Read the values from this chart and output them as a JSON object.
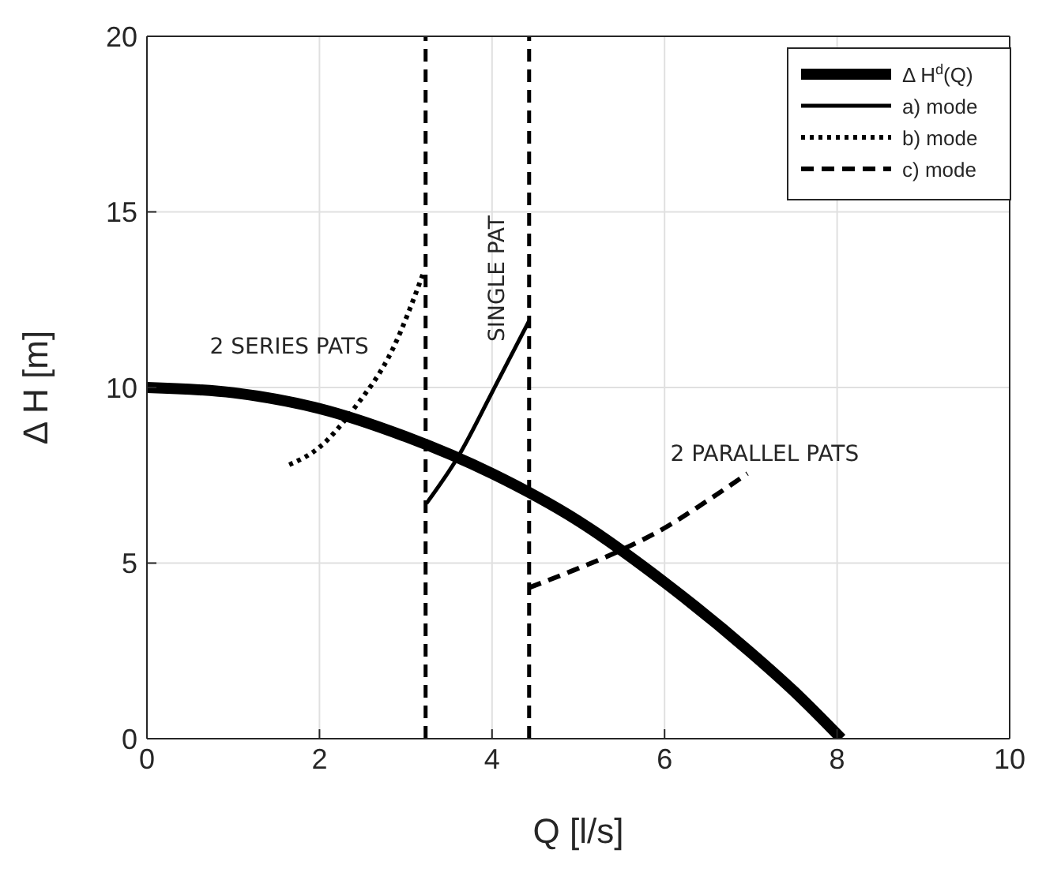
{
  "chart_data": {
    "type": "line",
    "xlabel": "Q [l/s]",
    "ylabel": "Δ H [m]",
    "xlim": [
      0,
      10
    ],
    "ylim": [
      0,
      20
    ],
    "xticks": [
      0,
      2,
      4,
      6,
      8,
      10
    ],
    "yticks": [
      0,
      5,
      10,
      15,
      20
    ],
    "grid": true,
    "legend": "top right",
    "marker": "none",
    "series": [
      {
        "name": "Δ H$^{d}$(Q)",
        "color": "#000000",
        "line_style": "solid",
        "x": [
          0,
          1,
          2,
          3,
          4,
          5,
          6,
          7,
          7.5,
          8.05
        ],
        "values": [
          10,
          9.85,
          9.4,
          8.6,
          7.55,
          6.2,
          4.45,
          2.45,
          1.35,
          0
        ]
      },
      {
        "name": "a) mode",
        "color": "#000000",
        "line_style": "solid",
        "x": [
          3.24,
          3.6,
          4.05,
          4.43
        ],
        "values": [
          6.7,
          8.0,
          10.1,
          11.9
        ]
      },
      {
        "name": "b) mode",
        "color": "#000000",
        "line_style": "dotted",
        "x": [
          1.65,
          2.0,
          2.4,
          2.85,
          3.21
        ],
        "values": [
          7.8,
          8.3,
          9.4,
          11.1,
          13.3
        ]
      },
      {
        "name": "c) mode",
        "color": "#000000",
        "line_style": "dashed",
        "x": [
          4.43,
          4.95,
          5.48,
          6.0,
          6.45,
          6.96
        ],
        "values": [
          4.3,
          4.8,
          5.35,
          6.0,
          6.7,
          7.55
        ]
      }
    ],
    "ref_lines": [
      {
        "axis": "x",
        "value": 3.23,
        "color": "#000000",
        "line_style": "dashed"
      },
      {
        "axis": "x",
        "value": 4.43,
        "color": "#000000",
        "line_style": "dashed"
      }
    ],
    "annotations": [
      "2 SERIES PATS",
      "SINGLE PAT",
      "2 PARALLEL PATS"
    ]
  }
}
